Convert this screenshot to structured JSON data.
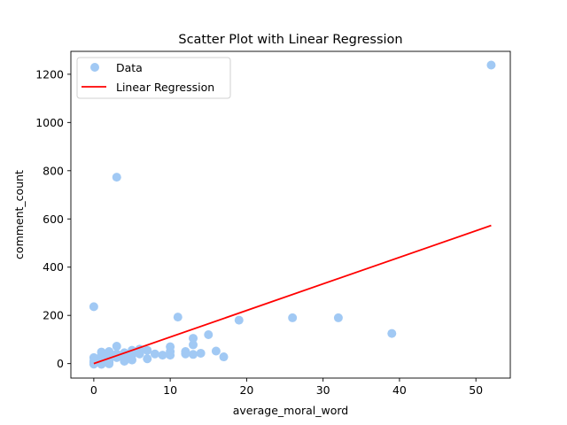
{
  "chart_data": {
    "type": "scatter",
    "title": "Scatter Plot with Linear Regression",
    "xlabel": "average_moral_word",
    "ylabel": "comment_count",
    "xlim": [
      -3,
      54.5
    ],
    "ylim": [
      -60,
      1295
    ],
    "xticks": [
      0,
      10,
      20,
      30,
      40,
      50
    ],
    "yticks": [
      0,
      200,
      400,
      600,
      800,
      1000,
      1200
    ],
    "grid": false,
    "legend": {
      "placement": "top-left",
      "entries": [
        {
          "label": "Data",
          "kind": "marker",
          "color": "#a1c9f4"
        },
        {
          "label": "Linear Regression",
          "kind": "line",
          "color": "#ff0000"
        }
      ]
    },
    "series": [
      {
        "name": "Data",
        "color": "#a1c9f4",
        "points": [
          [
            0,
            236
          ],
          [
            0,
            25
          ],
          [
            0,
            10
          ],
          [
            0,
            3
          ],
          [
            0,
            -2
          ],
          [
            1,
            48
          ],
          [
            1,
            35
          ],
          [
            1,
            20
          ],
          [
            1,
            8
          ],
          [
            1,
            0
          ],
          [
            1,
            -3
          ],
          [
            2,
            50
          ],
          [
            2,
            30
          ],
          [
            2,
            15
          ],
          [
            2,
            5
          ],
          [
            2,
            -1
          ],
          [
            3,
            773
          ],
          [
            3,
            72
          ],
          [
            3,
            40
          ],
          [
            3,
            25
          ],
          [
            4,
            45
          ],
          [
            4,
            25
          ],
          [
            4,
            10
          ],
          [
            5,
            55
          ],
          [
            5,
            35
          ],
          [
            5,
            15
          ],
          [
            6,
            60
          ],
          [
            6,
            40
          ],
          [
            7,
            55
          ],
          [
            7,
            20
          ],
          [
            8,
            40
          ],
          [
            9,
            35
          ],
          [
            10,
            70
          ],
          [
            10,
            50
          ],
          [
            10,
            35
          ],
          [
            11,
            193
          ],
          [
            12,
            50
          ],
          [
            12,
            40
          ],
          [
            13,
            105
          ],
          [
            13,
            78
          ],
          [
            13,
            38
          ],
          [
            14,
            43
          ],
          [
            15,
            120
          ],
          [
            16,
            52
          ],
          [
            17,
            28
          ],
          [
            19,
            180
          ],
          [
            26,
            190
          ],
          [
            32,
            190
          ],
          [
            39,
            125
          ],
          [
            52,
            1238
          ]
        ]
      }
    ],
    "regression": {
      "name": "Linear Regression",
      "color": "#ff0000",
      "x": [
        0,
        52
      ],
      "y": [
        0,
        573
      ]
    }
  }
}
